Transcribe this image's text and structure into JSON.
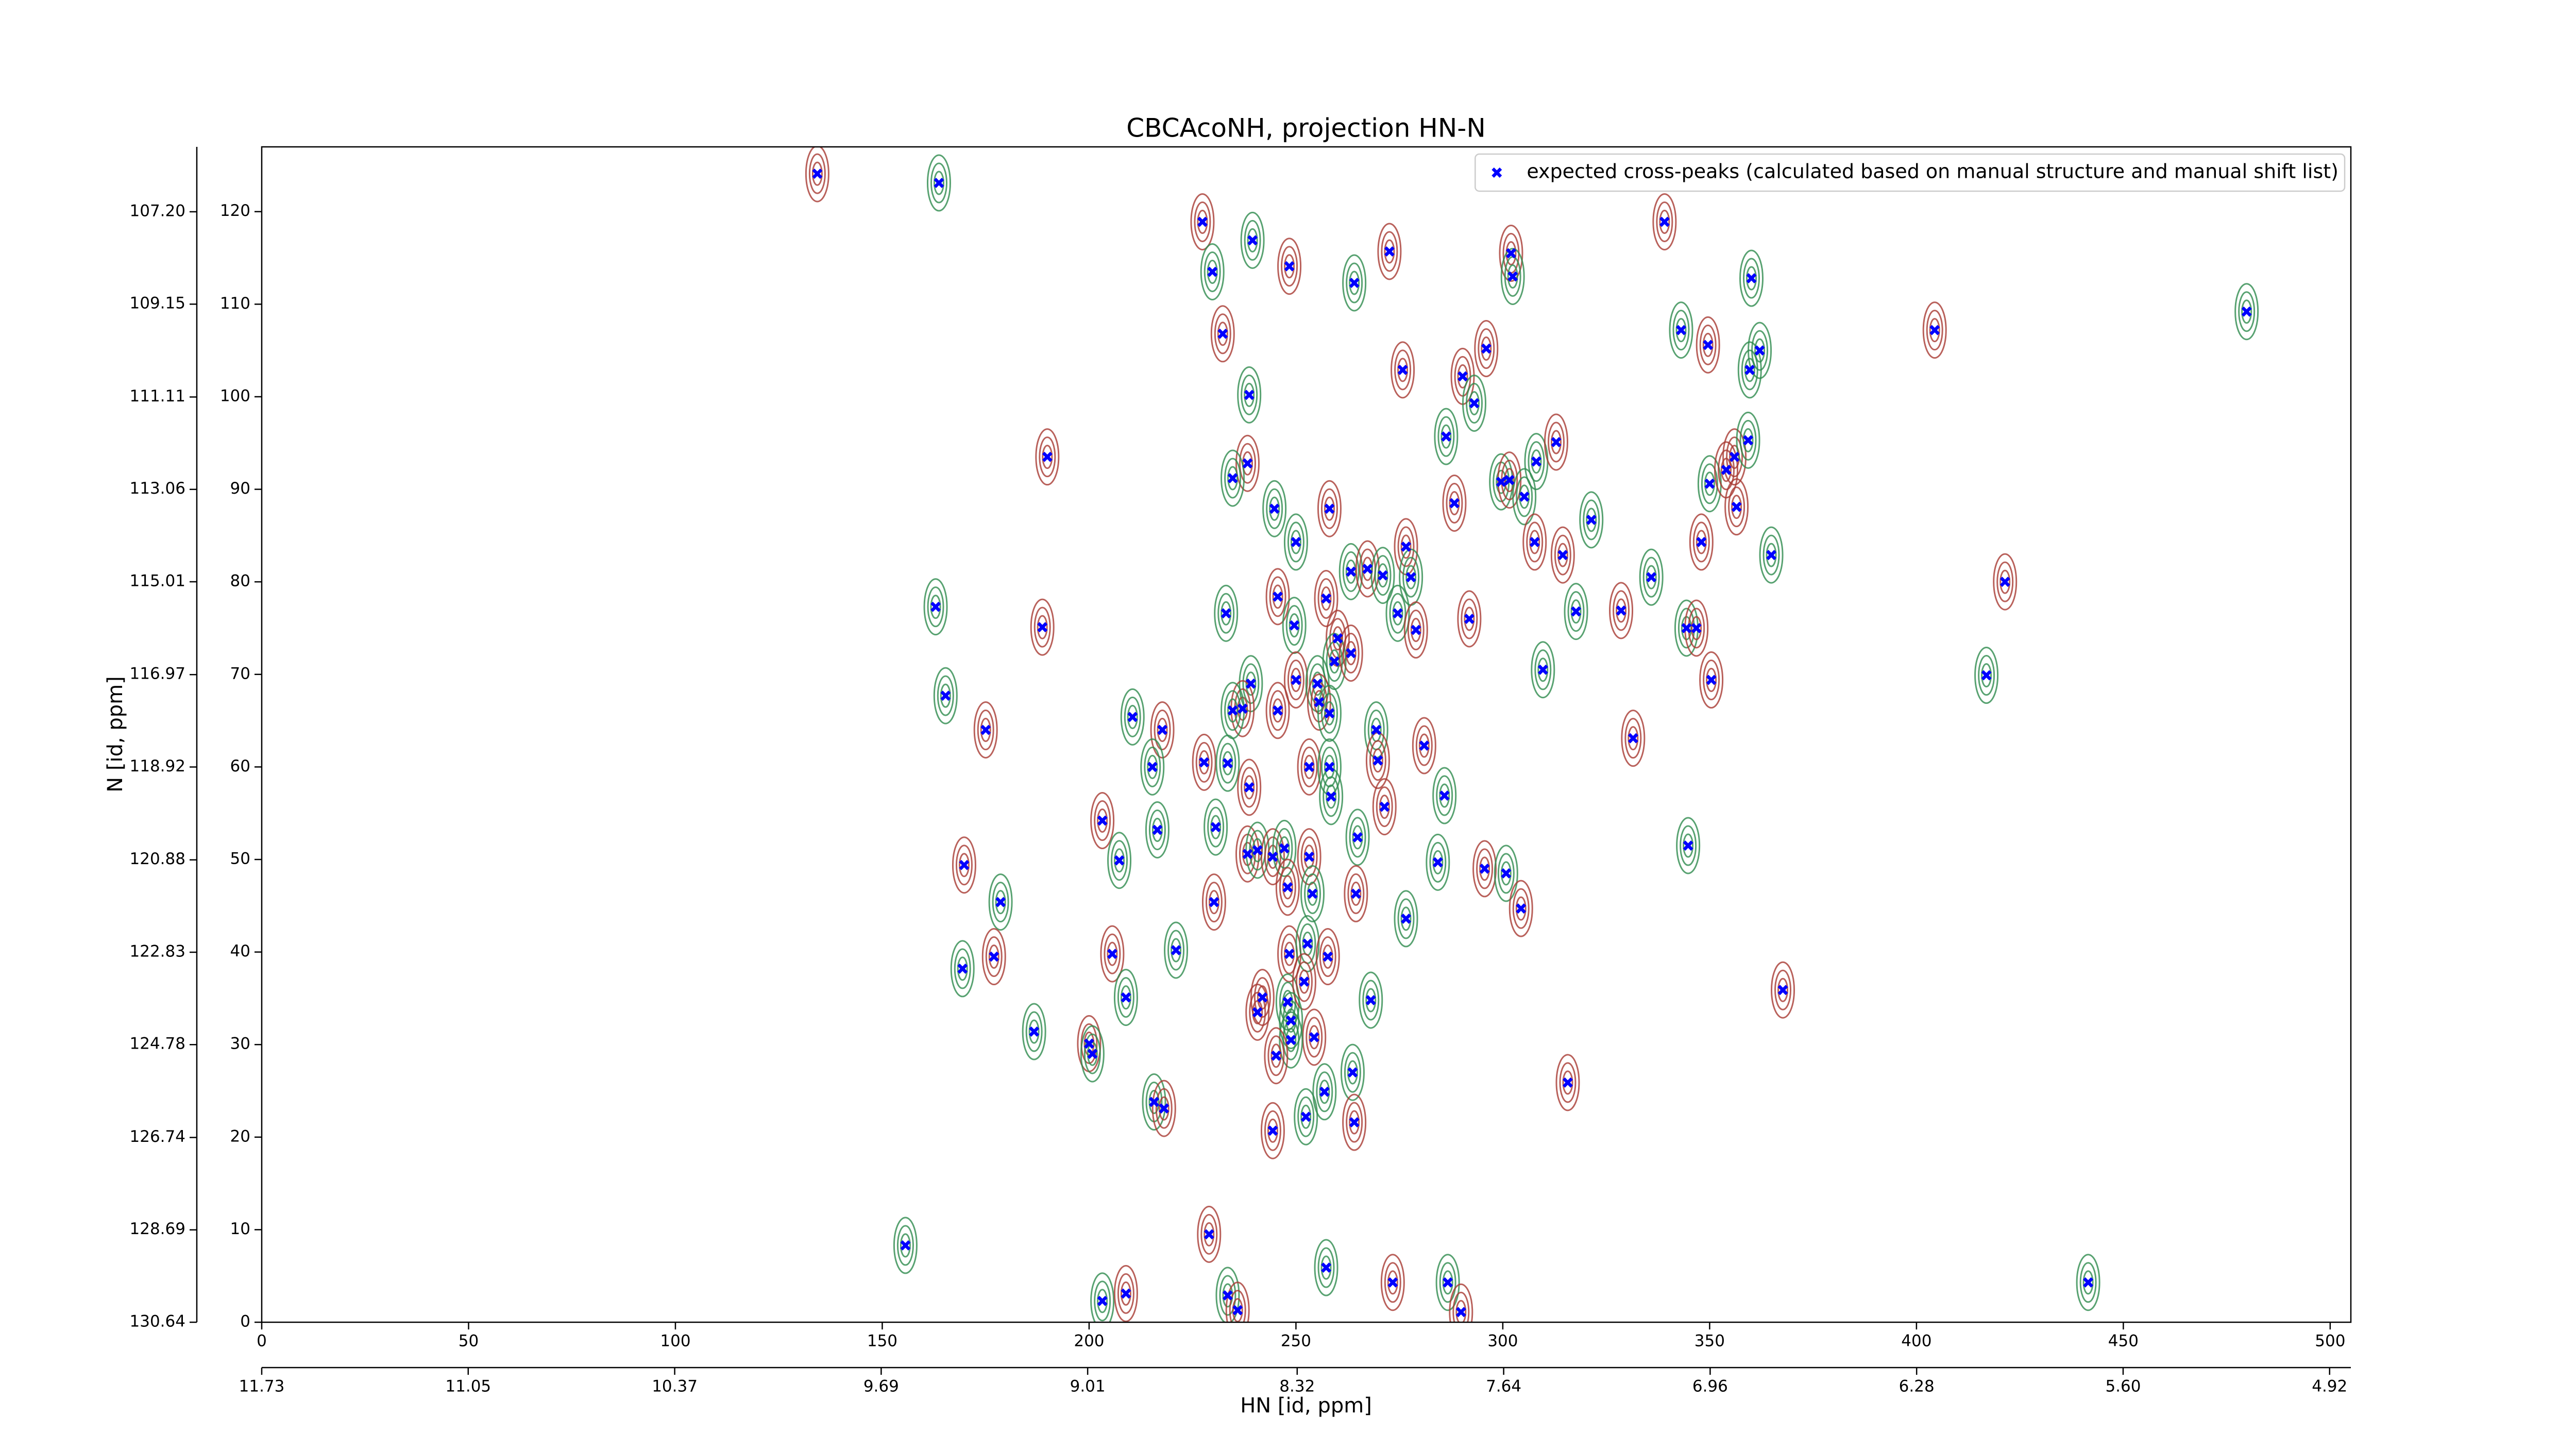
{
  "chart_data": {
    "type": "scatter",
    "title": "CBCAcoNH, projection HN-N",
    "xlabel": "HN [id, ppm]",
    "ylabel": "N [id, ppm]",
    "xlim": [
      0,
      505
    ],
    "ylim": [
      0,
      127
    ],
    "xticks": [
      0,
      50,
      100,
      150,
      200,
      250,
      300,
      350,
      400,
      450,
      500
    ],
    "yticks": [
      0,
      10,
      20,
      30,
      40,
      50,
      60,
      70,
      80,
      90,
      100,
      110,
      120
    ],
    "x2lim": [
      11.73,
      4.85
    ],
    "x2ticks": [
      11.73,
      11.05,
      10.37,
      9.69,
      9.01,
      8.32,
      7.64,
      6.96,
      6.28,
      {
        "value": 5.6,
        "label": "5.60"
      },
      4.92
    ],
    "y2lim": [
      130.64,
      105.83
    ],
    "y2ticks": [
      130.64,
      128.69,
      126.74,
      124.78,
      122.83,
      120.88,
      118.92,
      116.97,
      115.01,
      113.06,
      111.11,
      109.15,
      {
        "value": 107.2,
        "label": "107.20"
      }
    ],
    "legend": "upper right",
    "contour_colors": [
      "#a83a32",
      "#2e8b4e"
    ],
    "series": [
      {
        "name": "expected cross-peaks (calculated based on manual structure and manual shift list)",
        "color": "#0000ff",
        "x": [
          134.3,
          163.7,
          227.4,
          239.5,
          248.4,
          229.8,
          272.6,
          264.1,
          302.0,
          302.4,
          339.1,
          360.1,
          232.3,
          238.7,
          275.8,
          343.1,
          349.6,
          362.1,
          404.4,
          479.8,
          290.3,
          293.1,
          296.0,
          286.3,
          238.3,
          234.7,
          189.9,
          244.8,
          258.1,
          250.0,
          288.3,
          299.6,
          301.6,
          308.1,
          312.9,
          305.2,
          307.7,
          321.4,
          314.5,
          335.9,
          348.0,
          350.0,
          356.0,
          359.3,
          356.5,
          364.9,
          354.0,
          359.7,
          421.4,
          162.9,
          188.7,
          233.1,
          245.6,
          249.6,
          257.3,
          263.3,
          267.3,
          271.0,
          276.6,
          277.8,
          291.9,
          274.6,
          279.0,
          317.7,
          328.6,
          344.4,
          346.8,
          309.7,
          350.4,
          416.9,
          260.1,
          259.3,
          250.0,
          255.2,
          255.6,
          258.1,
          263.3,
          269.4,
          281.0,
          239.1,
          237.1,
          234.7,
          245.6,
          165.3,
          175.0,
          210.5,
          217.7,
          215.3,
          227.8,
          233.5,
          253.2,
          258.1,
          269.8,
          285.9,
          331.5,
          258.5,
          238.7,
          230.6,
          271.4,
          216.5,
          203.2,
          207.3,
          238.3,
          240.7,
          244.4,
          247.2,
          253.2,
          264.9,
          248.0,
          284.3,
          295.6,
          300.8,
          304.4,
          344.8,
          169.8,
          178.6,
          230.2,
          254.0,
          264.5,
          276.6,
          205.6,
          221.0,
          248.4,
          252.8,
          257.7,
          169.4,
          177.0,
          208.9,
          241.9,
          248.0,
          252.0,
          268.1,
          367.7,
          186.7,
          200.0,
          200.8,
          240.7,
          248.8,
          254.4,
          248.8,
          245.2,
          263.7,
          315.7,
          215.7,
          218.1,
          256.9,
          244.4,
          252.4,
          264.1,
          155.6,
          229.0,
          233.5,
          235.9,
          257.3,
          273.4,
          286.7,
          289.9,
          203.2,
          208.9,
          441.5
        ],
        "values": [
          124.1,
          123.1,
          118.9,
          116.9,
          114.1,
          113.5,
          115.7,
          112.3,
          115.5,
          113.0,
          118.9,
          112.8,
          106.8,
          100.2,
          102.9,
          107.2,
          105.6,
          105.0,
          107.2,
          109.2,
          102.2,
          99.3,
          105.2,
          95.7,
          92.8,
          91.2,
          93.5,
          87.9,
          87.9,
          84.3,
          88.5,
          90.8,
          91.0,
          93.0,
          95.1,
          89.2,
          84.3,
          86.7,
          82.9,
          80.5,
          84.3,
          90.6,
          93.5,
          95.3,
          88.1,
          82.9,
          92.1,
          102.9,
          80.0,
          77.3,
          75.1,
          76.6,
          78.4,
          75.3,
          78.2,
          81.1,
          81.4,
          80.7,
          83.8,
          80.5,
          76.0,
          76.6,
          74.8,
          76.8,
          76.9,
          75.0,
          75.0,
          70.5,
          69.4,
          69.9,
          73.9,
          71.4,
          69.4,
          69.0,
          67.0,
          65.8,
          72.3,
          64.0,
          62.3,
          69.0,
          66.3,
          66.1,
          66.1,
          67.7,
          64.0,
          65.4,
          64.0,
          60.0,
          60.5,
          60.4,
          60.0,
          60.0,
          60.7,
          56.9,
          63.1,
          56.8,
          57.8,
          53.5,
          55.7,
          53.2,
          54.2,
          49.9,
          50.6,
          51.0,
          50.3,
          51.2,
          50.3,
          52.4,
          47.0,
          49.7,
          49.0,
          48.5,
          44.7,
          51.5,
          49.4,
          45.4,
          45.4,
          46.3,
          46.3,
          43.6,
          39.8,
          40.2,
          39.8,
          40.9,
          39.5,
          38.2,
          39.5,
          35.1,
          35.1,
          34.6,
          36.8,
          34.8,
          35.9,
          31.4,
          30.1,
          29.0,
          33.5,
          32.6,
          30.8,
          30.5,
          28.8,
          27.0,
          25.9,
          23.8,
          23.1,
          24.9,
          20.7,
          22.2,
          21.6,
          8.3,
          9.5,
          2.9,
          1.3,
          5.9,
          4.3,
          4.3,
          1.1,
          2.3,
          3.1,
          4.3
        ]
      }
    ]
  }
}
